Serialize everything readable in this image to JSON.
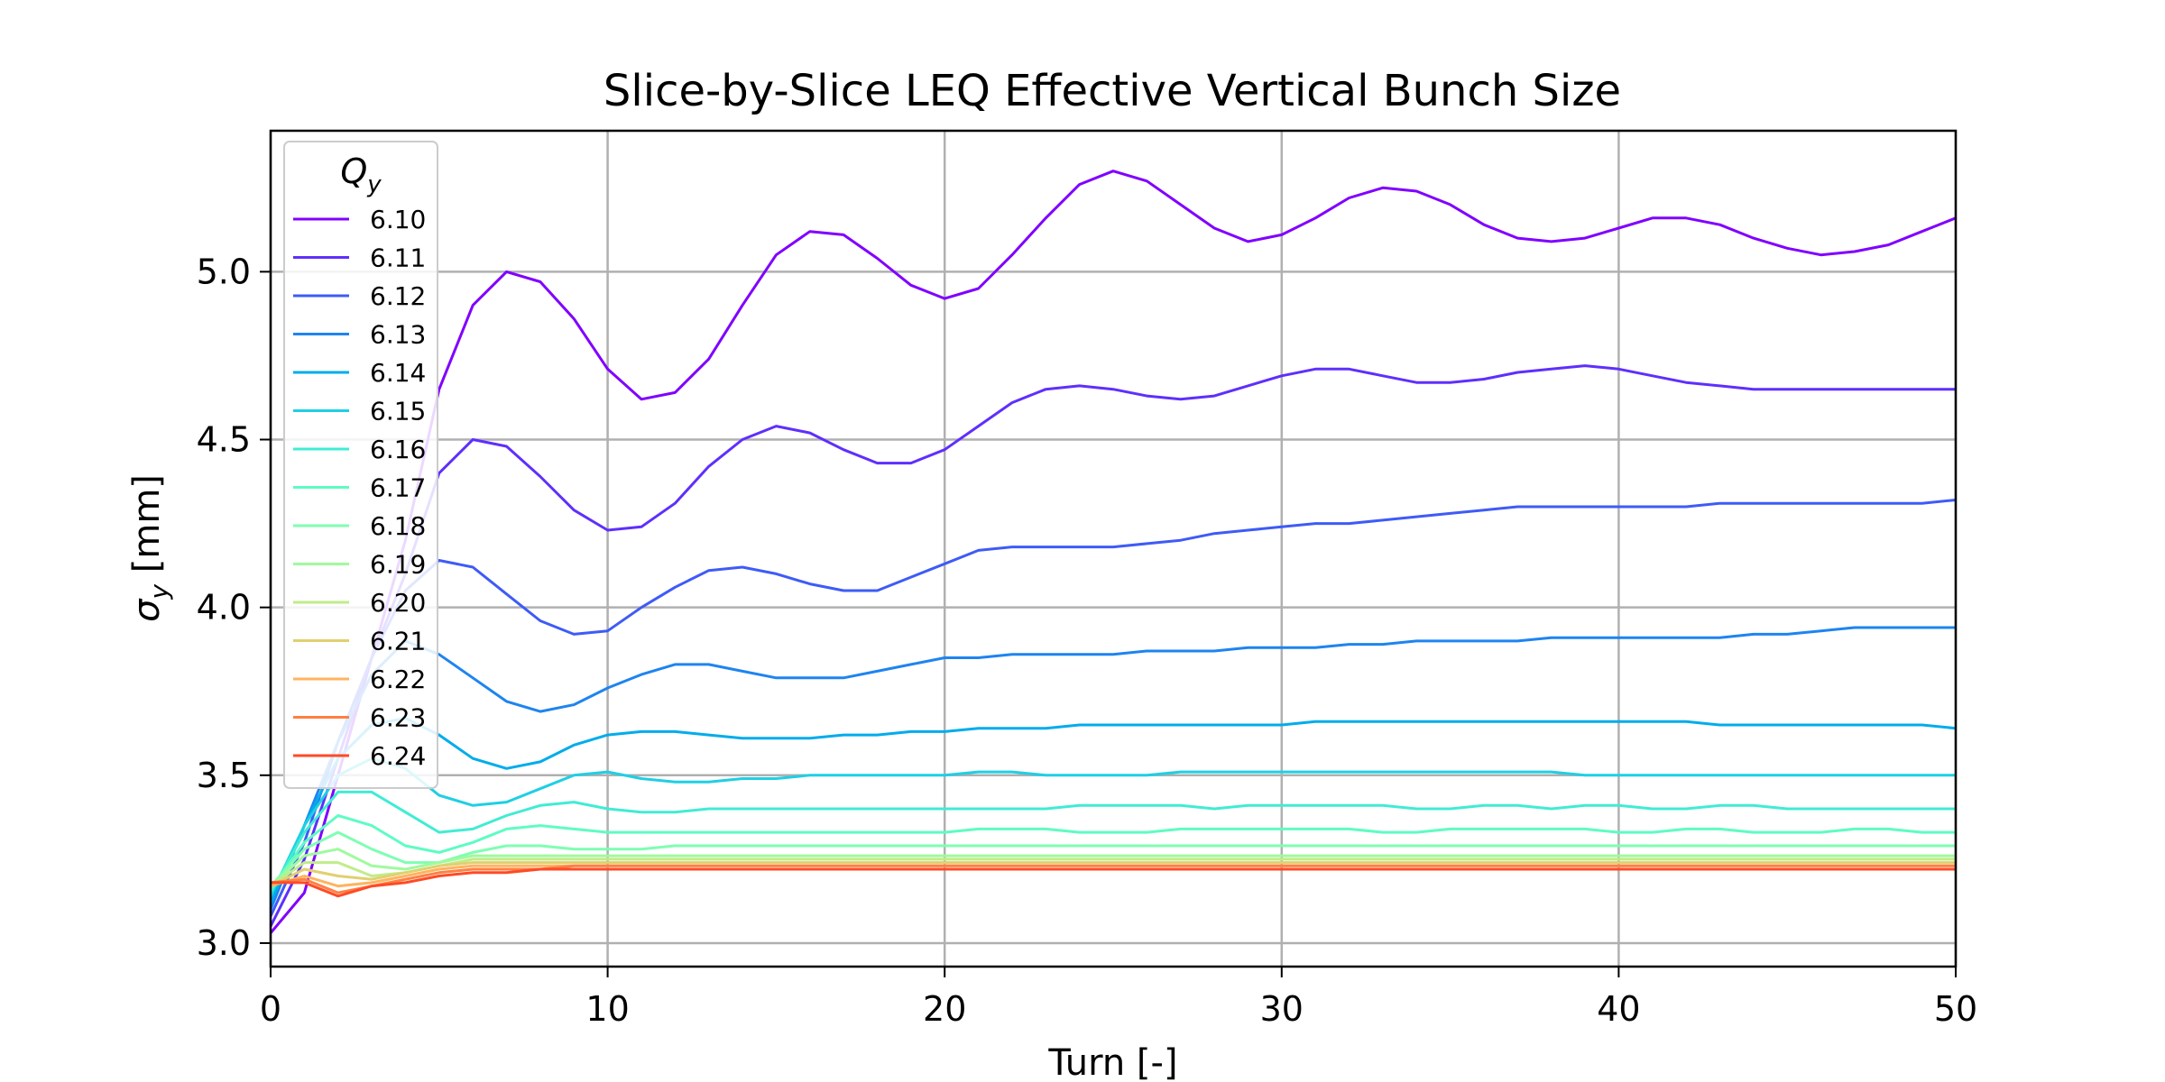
{
  "chart_data": {
    "type": "line",
    "title": "Slice-by-Slice LEQ Effective Vertical Bunch Size",
    "xlabel": "Turn [-]",
    "ylabel_main": "σ",
    "ylabel_sub": "y",
    "ylabel_unit": "[mm]",
    "xlim": [
      0,
      50
    ],
    "ylim": [
      2.93,
      5.42
    ],
    "x_ticks": [
      "0",
      "10",
      "20",
      "30",
      "40",
      "50"
    ],
    "y_ticks": [
      "3.0",
      "3.5",
      "4.0",
      "4.5",
      "5.0"
    ],
    "grid": true,
    "legend": {
      "title_main": "Q",
      "title_sub": "y",
      "placement": "top-left"
    },
    "x": [
      0,
      1,
      2,
      3,
      4,
      5,
      6,
      7,
      8,
      9,
      10,
      11,
      12,
      13,
      14,
      15,
      16,
      17,
      18,
      19,
      20,
      21,
      22,
      23,
      24,
      25,
      26,
      27,
      28,
      29,
      30,
      31,
      32,
      33,
      34,
      35,
      36,
      37,
      38,
      39,
      40,
      41,
      42,
      43,
      44,
      45,
      46,
      47,
      48,
      49,
      50
    ],
    "series": [
      {
        "name": "6.10",
        "color": "#8000ff",
        "values": [
          3.03,
          3.15,
          3.5,
          3.85,
          4.2,
          4.65,
          4.9,
          5.0,
          4.97,
          4.86,
          4.71,
          4.62,
          4.64,
          4.74,
          4.9,
          5.05,
          5.12,
          5.11,
          5.04,
          4.96,
          4.92,
          4.95,
          5.05,
          5.16,
          5.26,
          5.3,
          5.27,
          5.2,
          5.13,
          5.09,
          5.11,
          5.16,
          5.22,
          5.25,
          5.24,
          5.2,
          5.14,
          5.1,
          5.09,
          5.1,
          5.13,
          5.16,
          5.16,
          5.14,
          5.1,
          5.07,
          5.05,
          5.06,
          5.08,
          5.12,
          5.16
        ]
      },
      {
        "name": "6.11",
        "color": "#5f2ffc",
        "values": [
          3.05,
          3.25,
          3.55,
          3.85,
          4.1,
          4.4,
          4.5,
          4.48,
          4.39,
          4.29,
          4.23,
          4.24,
          4.31,
          4.42,
          4.5,
          4.54,
          4.52,
          4.47,
          4.43,
          4.43,
          4.47,
          4.54,
          4.61,
          4.65,
          4.66,
          4.65,
          4.63,
          4.62,
          4.63,
          4.66,
          4.69,
          4.71,
          4.71,
          4.69,
          4.67,
          4.67,
          4.68,
          4.7,
          4.71,
          4.72,
          4.71,
          4.69,
          4.67,
          4.66,
          4.65,
          4.65,
          4.65,
          4.65,
          4.65,
          4.65,
          4.65
        ]
      },
      {
        "name": "6.12",
        "color": "#3e5bf7",
        "values": [
          3.08,
          3.3,
          3.6,
          3.85,
          4.05,
          4.14,
          4.12,
          4.04,
          3.96,
          3.92,
          3.93,
          4.0,
          4.06,
          4.11,
          4.12,
          4.1,
          4.07,
          4.05,
          4.05,
          4.09,
          4.13,
          4.17,
          4.18,
          4.18,
          4.18,
          4.18,
          4.19,
          4.2,
          4.22,
          4.23,
          4.24,
          4.25,
          4.25,
          4.26,
          4.27,
          4.28,
          4.29,
          4.3,
          4.3,
          4.3,
          4.3,
          4.3,
          4.3,
          4.31,
          4.31,
          4.31,
          4.31,
          4.31,
          4.31,
          4.31,
          4.32
        ]
      },
      {
        "name": "6.13",
        "color": "#1e84f0",
        "values": [
          3.1,
          3.35,
          3.6,
          3.8,
          3.9,
          3.86,
          3.79,
          3.72,
          3.69,
          3.71,
          3.76,
          3.8,
          3.83,
          3.83,
          3.81,
          3.79,
          3.79,
          3.79,
          3.81,
          3.83,
          3.85,
          3.85,
          3.86,
          3.86,
          3.86,
          3.86,
          3.87,
          3.87,
          3.87,
          3.88,
          3.88,
          3.88,
          3.89,
          3.89,
          3.9,
          3.9,
          3.9,
          3.9,
          3.91,
          3.91,
          3.91,
          3.91,
          3.91,
          3.91,
          3.92,
          3.92,
          3.93,
          3.94,
          3.94,
          3.94,
          3.94
        ]
      },
      {
        "name": "6.14",
        "color": "#01aceb",
        "values": [
          3.12,
          3.35,
          3.55,
          3.65,
          3.67,
          3.62,
          3.55,
          3.52,
          3.54,
          3.59,
          3.62,
          3.63,
          3.63,
          3.62,
          3.61,
          3.61,
          3.61,
          3.62,
          3.62,
          3.63,
          3.63,
          3.64,
          3.64,
          3.64,
          3.65,
          3.65,
          3.65,
          3.65,
          3.65,
          3.65,
          3.65,
          3.66,
          3.66,
          3.66,
          3.66,
          3.66,
          3.66,
          3.66,
          3.66,
          3.66,
          3.66,
          3.66,
          3.66,
          3.65,
          3.65,
          3.65,
          3.65,
          3.65,
          3.65,
          3.65,
          3.64
        ]
      },
      {
        "name": "6.15",
        "color": "#1fcfe4",
        "values": [
          3.14,
          3.35,
          3.5,
          3.55,
          3.52,
          3.44,
          3.41,
          3.42,
          3.46,
          3.5,
          3.51,
          3.49,
          3.48,
          3.48,
          3.49,
          3.49,
          3.5,
          3.5,
          3.5,
          3.5,
          3.5,
          3.51,
          3.51,
          3.5,
          3.5,
          3.5,
          3.5,
          3.51,
          3.51,
          3.51,
          3.51,
          3.51,
          3.51,
          3.51,
          3.51,
          3.51,
          3.51,
          3.51,
          3.51,
          3.5,
          3.5,
          3.5,
          3.5,
          3.5,
          3.5,
          3.5,
          3.5,
          3.5,
          3.5,
          3.5,
          3.5
        ]
      },
      {
        "name": "6.16",
        "color": "#40ecd4",
        "values": [
          3.15,
          3.33,
          3.45,
          3.45,
          3.39,
          3.33,
          3.34,
          3.38,
          3.41,
          3.42,
          3.4,
          3.39,
          3.39,
          3.4,
          3.4,
          3.4,
          3.4,
          3.4,
          3.4,
          3.4,
          3.4,
          3.4,
          3.4,
          3.4,
          3.41,
          3.41,
          3.41,
          3.41,
          3.4,
          3.41,
          3.41,
          3.41,
          3.41,
          3.41,
          3.4,
          3.4,
          3.41,
          3.41,
          3.4,
          3.41,
          3.41,
          3.4,
          3.4,
          3.41,
          3.41,
          3.4,
          3.4,
          3.4,
          3.4,
          3.4,
          3.4
        ]
      },
      {
        "name": "6.17",
        "color": "#5efcc3",
        "values": [
          3.16,
          3.3,
          3.38,
          3.35,
          3.29,
          3.27,
          3.3,
          3.34,
          3.35,
          3.34,
          3.33,
          3.33,
          3.33,
          3.33,
          3.33,
          3.33,
          3.33,
          3.33,
          3.33,
          3.33,
          3.33,
          3.34,
          3.34,
          3.34,
          3.33,
          3.33,
          3.33,
          3.34,
          3.34,
          3.34,
          3.34,
          3.34,
          3.34,
          3.33,
          3.33,
          3.34,
          3.34,
          3.34,
          3.34,
          3.34,
          3.33,
          3.33,
          3.34,
          3.34,
          3.33,
          3.33,
          3.33,
          3.34,
          3.34,
          3.33,
          3.33
        ]
      },
      {
        "name": "6.18",
        "color": "#7ffeb2",
        "values": [
          3.17,
          3.28,
          3.33,
          3.28,
          3.24,
          3.24,
          3.27,
          3.29,
          3.29,
          3.28,
          3.28,
          3.28,
          3.29,
          3.29,
          3.29,
          3.29,
          3.29,
          3.29,
          3.29,
          3.29,
          3.29,
          3.29,
          3.29,
          3.29,
          3.29,
          3.29,
          3.29,
          3.29,
          3.29,
          3.29,
          3.29,
          3.29,
          3.29,
          3.29,
          3.29,
          3.29,
          3.29,
          3.29,
          3.29,
          3.29,
          3.29,
          3.29,
          3.29,
          3.29,
          3.29,
          3.29,
          3.29,
          3.29,
          3.29,
          3.29,
          3.29
        ]
      },
      {
        "name": "6.19",
        "color": "#9ffa9d",
        "values": [
          3.17,
          3.26,
          3.28,
          3.23,
          3.22,
          3.24,
          3.26,
          3.26,
          3.26,
          3.26,
          3.26,
          3.26,
          3.26,
          3.26,
          3.26,
          3.26,
          3.26,
          3.26,
          3.26,
          3.26,
          3.26,
          3.26,
          3.26,
          3.26,
          3.26,
          3.26,
          3.26,
          3.26,
          3.26,
          3.26,
          3.26,
          3.26,
          3.26,
          3.26,
          3.26,
          3.26,
          3.26,
          3.26,
          3.26,
          3.26,
          3.26,
          3.26,
          3.26,
          3.26,
          3.26,
          3.26,
          3.26,
          3.26,
          3.26,
          3.26,
          3.26
        ]
      },
      {
        "name": "6.20",
        "color": "#c0ec89",
        "values": [
          3.17,
          3.24,
          3.24,
          3.2,
          3.21,
          3.23,
          3.25,
          3.25,
          3.25,
          3.25,
          3.25,
          3.25,
          3.25,
          3.25,
          3.25,
          3.25,
          3.25,
          3.25,
          3.25,
          3.25,
          3.25,
          3.25,
          3.25,
          3.25,
          3.25,
          3.25,
          3.25,
          3.25,
          3.25,
          3.25,
          3.25,
          3.25,
          3.25,
          3.25,
          3.25,
          3.25,
          3.25,
          3.25,
          3.25,
          3.25,
          3.25,
          3.25,
          3.25,
          3.25,
          3.25,
          3.25,
          3.25,
          3.25,
          3.25,
          3.25,
          3.25
        ]
      },
      {
        "name": "6.21",
        "color": "#e0d06f",
        "values": [
          3.17,
          3.22,
          3.2,
          3.19,
          3.21,
          3.23,
          3.24,
          3.24,
          3.24,
          3.24,
          3.24,
          3.24,
          3.24,
          3.24,
          3.24,
          3.24,
          3.24,
          3.24,
          3.24,
          3.24,
          3.24,
          3.24,
          3.24,
          3.24,
          3.24,
          3.24,
          3.24,
          3.24,
          3.24,
          3.24,
          3.24,
          3.24,
          3.24,
          3.24,
          3.24,
          3.24,
          3.24,
          3.24,
          3.24,
          3.24,
          3.24,
          3.24,
          3.24,
          3.24,
          3.24,
          3.24,
          3.24,
          3.24,
          3.24,
          3.24,
          3.24
        ]
      },
      {
        "name": "6.22",
        "color": "#ffb360",
        "values": [
          3.17,
          3.2,
          3.17,
          3.18,
          3.2,
          3.22,
          3.23,
          3.23,
          3.23,
          3.23,
          3.23,
          3.23,
          3.23,
          3.23,
          3.23,
          3.23,
          3.23,
          3.23,
          3.23,
          3.23,
          3.23,
          3.23,
          3.23,
          3.23,
          3.23,
          3.23,
          3.23,
          3.23,
          3.23,
          3.23,
          3.23,
          3.23,
          3.23,
          3.23,
          3.23,
          3.23,
          3.23,
          3.23,
          3.23,
          3.23,
          3.23,
          3.23,
          3.23,
          3.23,
          3.23,
          3.23,
          3.23,
          3.23,
          3.23,
          3.23,
          3.23
        ]
      },
      {
        "name": "6.23",
        "color": "#ff8042",
        "values": [
          3.18,
          3.19,
          3.15,
          3.17,
          3.19,
          3.21,
          3.22,
          3.22,
          3.22,
          3.23,
          3.23,
          3.23,
          3.23,
          3.23,
          3.23,
          3.23,
          3.23,
          3.23,
          3.23,
          3.23,
          3.23,
          3.23,
          3.23,
          3.23,
          3.23,
          3.23,
          3.23,
          3.23,
          3.23,
          3.23,
          3.23,
          3.23,
          3.23,
          3.23,
          3.23,
          3.23,
          3.23,
          3.23,
          3.23,
          3.23,
          3.23,
          3.23,
          3.23,
          3.23,
          3.23,
          3.23,
          3.23,
          3.23,
          3.23,
          3.23,
          3.23
        ]
      },
      {
        "name": "6.24",
        "color": "#ff4a26",
        "values": [
          3.18,
          3.18,
          3.14,
          3.17,
          3.18,
          3.2,
          3.21,
          3.21,
          3.22,
          3.22,
          3.22,
          3.22,
          3.22,
          3.22,
          3.22,
          3.22,
          3.22,
          3.22,
          3.22,
          3.22,
          3.22,
          3.22,
          3.22,
          3.22,
          3.22,
          3.22,
          3.22,
          3.22,
          3.22,
          3.22,
          3.22,
          3.22,
          3.22,
          3.22,
          3.22,
          3.22,
          3.22,
          3.22,
          3.22,
          3.22,
          3.22,
          3.22,
          3.22,
          3.22,
          3.22,
          3.22,
          3.22,
          3.22,
          3.22,
          3.22,
          3.22
        ]
      }
    ]
  }
}
